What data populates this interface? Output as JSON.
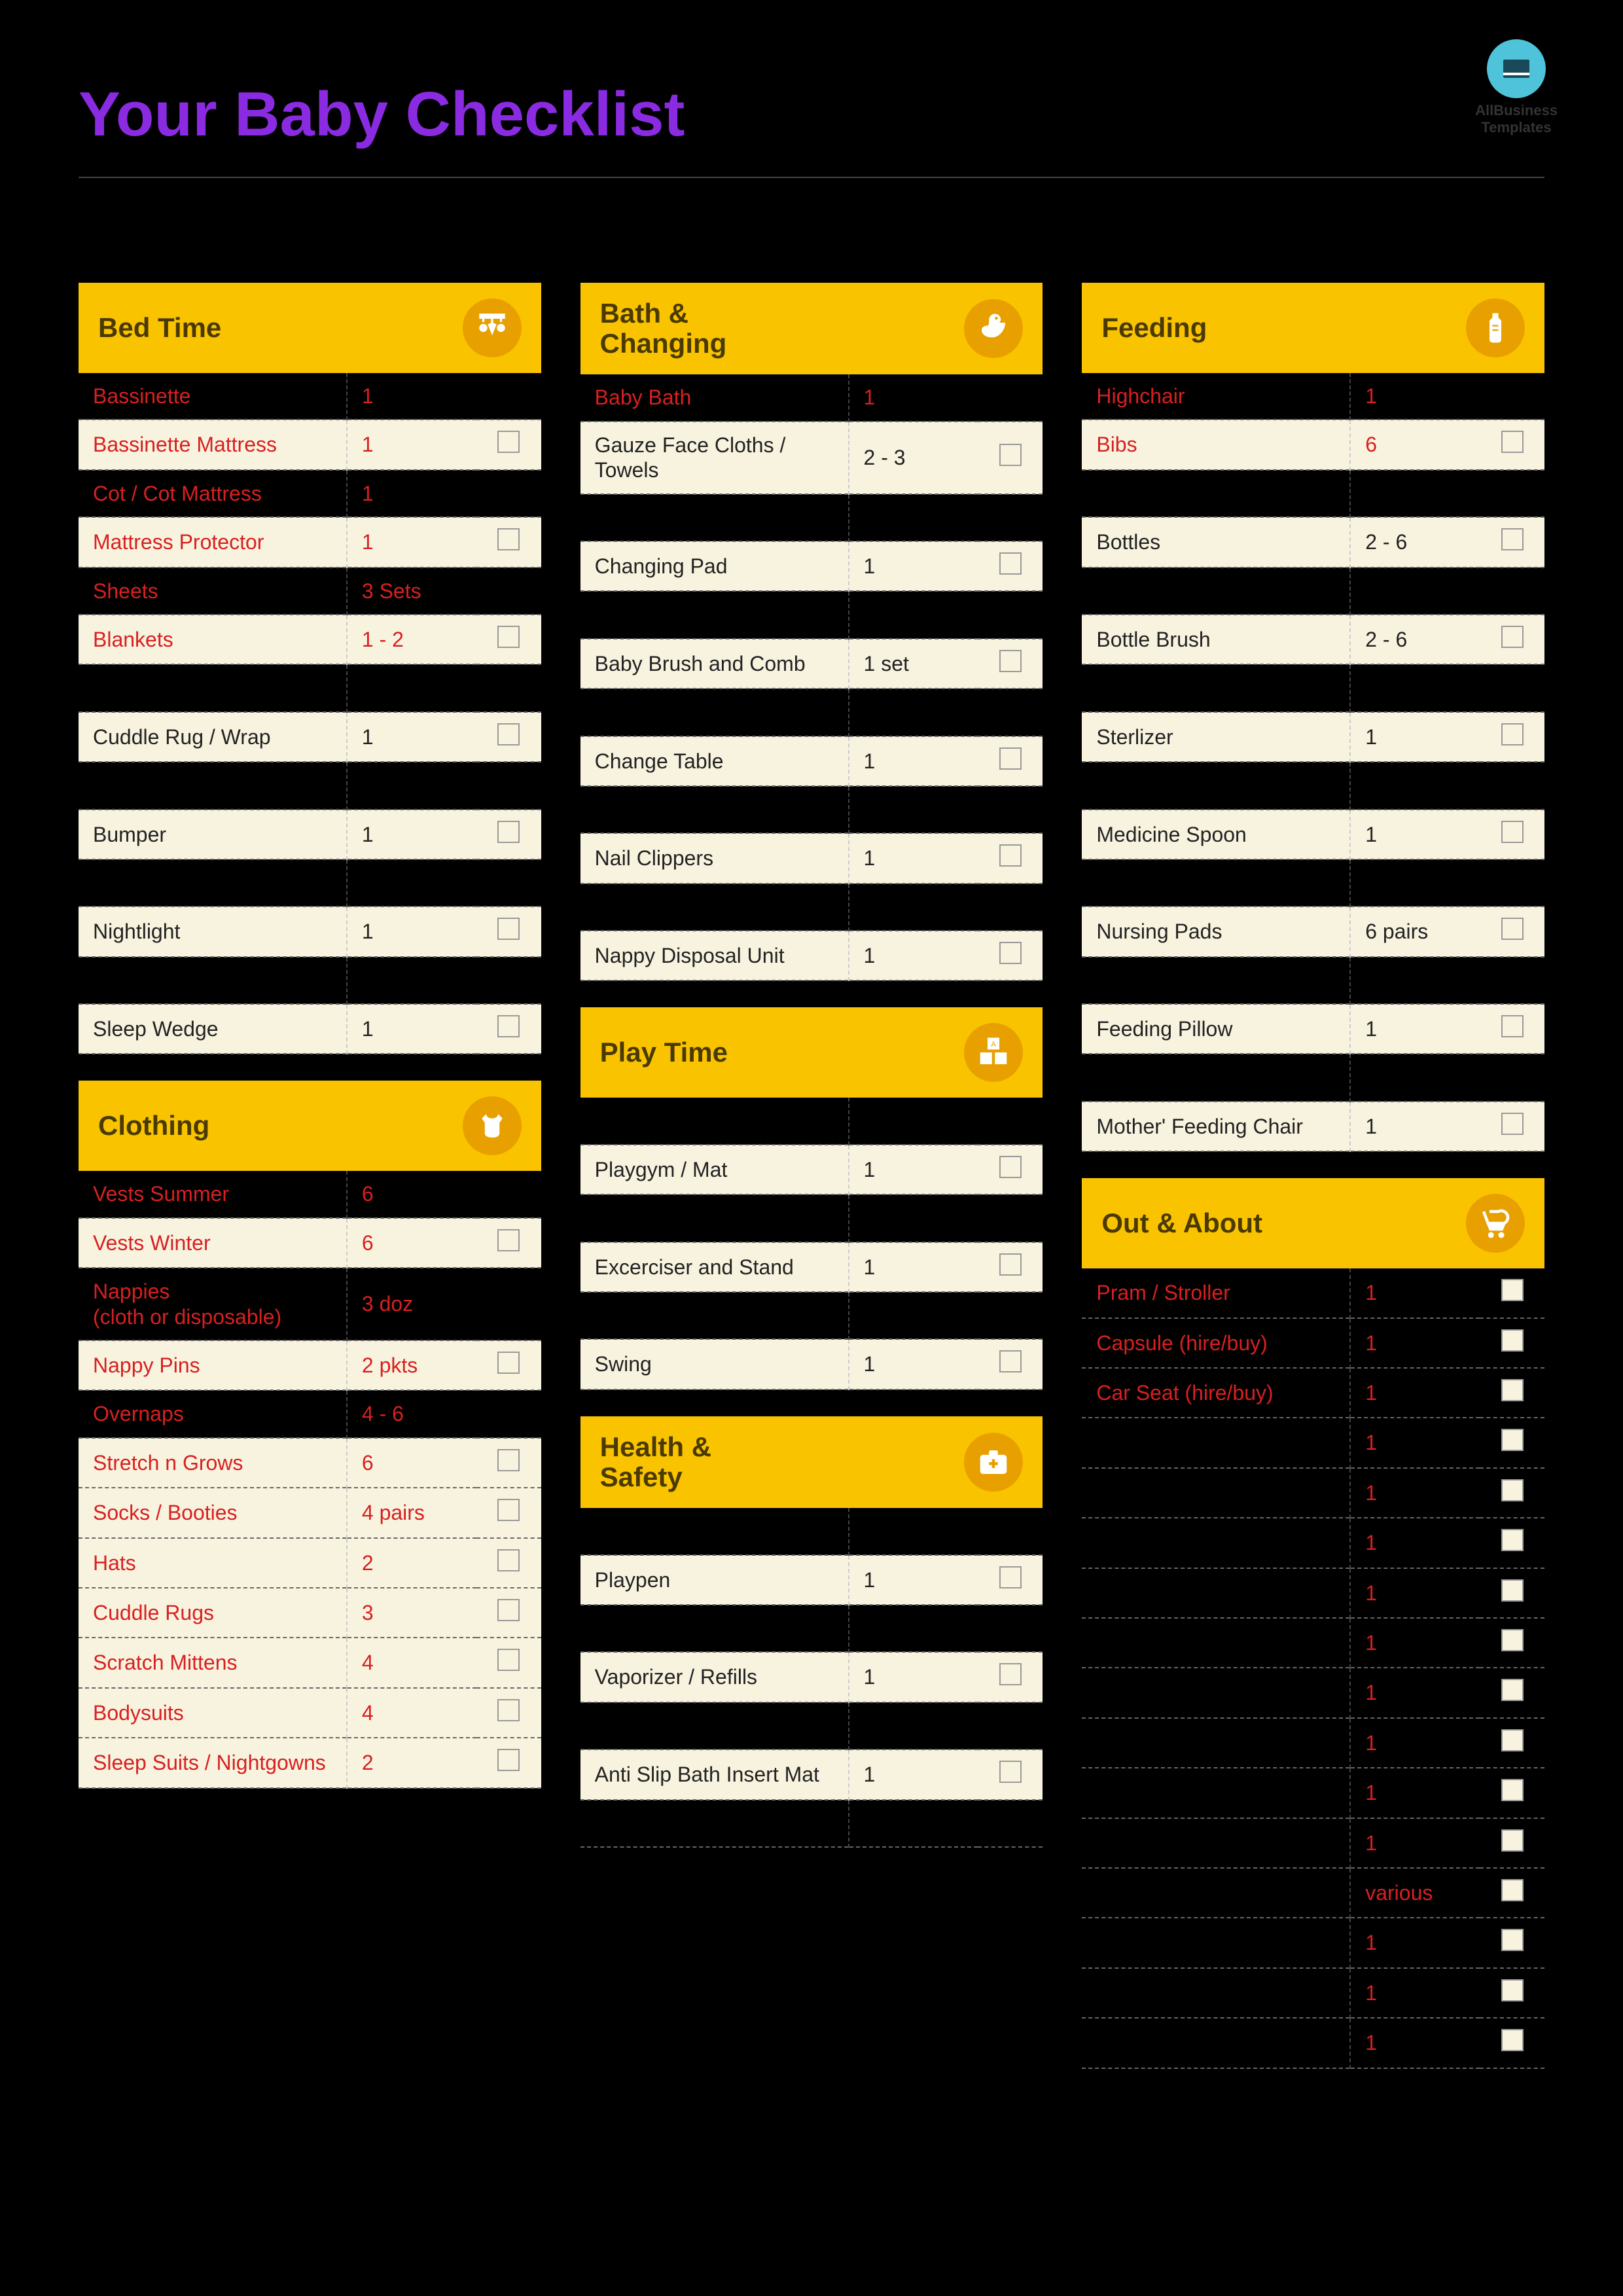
{
  "logo": {
    "line1": "AllBusiness",
    "line2": "Templates"
  },
  "title": "Your Baby Checklist",
  "sections": {
    "bedtime": {
      "title": "Bed Time",
      "items": [
        {
          "label": "Bassinette",
          "qty": "1",
          "dark": true,
          "nocheck": true
        },
        {
          "label": "Bassinette Mattress",
          "qty": "1",
          "red": true
        },
        {
          "label": "Cot / Cot Mattress",
          "qty": "1",
          "dark": true,
          "nocheck": true
        },
        {
          "label": "Mattress Protector",
          "qty": "1",
          "red": true
        },
        {
          "label": "Sheets",
          "qty": "3 Sets",
          "dark": true,
          "nocheck": true
        },
        {
          "label": "Blankets",
          "qty": "1 - 2",
          "red": true
        },
        {
          "label": "",
          "qty": "",
          "dark": true,
          "nocheck": true
        },
        {
          "label": "Cuddle Rug / Wrap",
          "qty": "1"
        },
        {
          "label": "",
          "qty": "",
          "dark": true,
          "nocheck": true
        },
        {
          "label": "Bumper",
          "qty": "1"
        },
        {
          "label": "",
          "qty": "",
          "dark": true,
          "nocheck": true
        },
        {
          "label": "Nightlight",
          "qty": "1"
        },
        {
          "label": "",
          "qty": "",
          "dark": true,
          "nocheck": true
        },
        {
          "label": "Sleep Wedge",
          "qty": "1"
        }
      ]
    },
    "clothing": {
      "title": "Clothing",
      "items": [
        {
          "label": "Vests Summer",
          "qty": "6",
          "dark": true,
          "nocheck": true
        },
        {
          "label": "Vests Winter",
          "qty": "6",
          "red": true
        },
        {
          "label": "Nappies\n(cloth or disposable)",
          "qty": "3 doz",
          "dark": true,
          "nocheck": true
        },
        {
          "label": "Nappy Pins",
          "qty": "2 pkts",
          "red": true
        },
        {
          "label": "Overnaps",
          "qty": "4 - 6",
          "dark": true,
          "nocheck": true
        },
        {
          "label": "Stretch n Grows",
          "qty": "6",
          "red": true
        },
        {
          "label": "Socks / Booties",
          "qty": "4 pairs",
          "red": true
        },
        {
          "label": "Hats",
          "qty": "2",
          "red": true
        },
        {
          "label": "Cuddle Rugs",
          "qty": "3",
          "red": true
        },
        {
          "label": "Scratch Mittens",
          "qty": "4",
          "red": true
        },
        {
          "label": "Bodysuits",
          "qty": "4",
          "red": true
        },
        {
          "label": "Sleep Suits / Nightgowns",
          "qty": "2",
          "red": true
        }
      ]
    },
    "bath": {
      "title": "Bath & Changing",
      "items": [
        {
          "label": "Baby Bath",
          "qty": "1",
          "dark": true,
          "nocheck": true
        },
        {
          "label": "Gauze Face Cloths / Towels",
          "qty": "2 - 3"
        },
        {
          "label": "",
          "qty": "",
          "dark": true,
          "nocheck": true
        },
        {
          "label": "Changing Pad",
          "qty": "1"
        },
        {
          "label": "",
          "qty": "",
          "dark": true,
          "nocheck": true
        },
        {
          "label": "Baby Brush and Comb",
          "qty": "1 set"
        },
        {
          "label": "",
          "qty": "",
          "dark": true,
          "nocheck": true
        },
        {
          "label": "Change Table",
          "qty": "1"
        },
        {
          "label": "",
          "qty": "",
          "dark": true,
          "nocheck": true
        },
        {
          "label": "Nail Clippers",
          "qty": "1"
        },
        {
          "label": "",
          "qty": "",
          "dark": true,
          "nocheck": true
        },
        {
          "label": "Nappy Disposal Unit",
          "qty": "1"
        }
      ]
    },
    "playtime": {
      "title": "Play Time",
      "items": [
        {
          "label": "",
          "qty": "",
          "dark": true,
          "nocheck": true
        },
        {
          "label": "Playgym / Mat",
          "qty": "1"
        },
        {
          "label": "",
          "qty": "",
          "dark": true,
          "nocheck": true
        },
        {
          "label": "Excerciser and Stand",
          "qty": "1"
        },
        {
          "label": "",
          "qty": "",
          "dark": true,
          "nocheck": true
        },
        {
          "label": "Swing",
          "qty": "1"
        }
      ]
    },
    "health": {
      "title": "Health & Safety",
      "items": [
        {
          "label": "",
          "qty": "",
          "dark": true,
          "nocheck": true
        },
        {
          "label": "Playpen",
          "qty": "1"
        },
        {
          "label": "",
          "qty": "",
          "dark": true,
          "nocheck": true
        },
        {
          "label": "Vaporizer / Refills",
          "qty": "1"
        },
        {
          "label": "",
          "qty": "",
          "dark": true,
          "nocheck": true
        },
        {
          "label": "Anti Slip Bath Insert Mat",
          "qty": "1"
        },
        {
          "label": "",
          "qty": "",
          "dark": true,
          "nocheck": true
        }
      ]
    },
    "feeding": {
      "title": "Feeding",
      "items": [
        {
          "label": "Highchair",
          "qty": "1",
          "dark": true,
          "nocheck": true
        },
        {
          "label": "Bibs",
          "qty": "6",
          "red": true
        },
        {
          "label": "",
          "qty": "",
          "dark": true,
          "nocheck": true
        },
        {
          "label": "Bottles",
          "qty": "2 - 6"
        },
        {
          "label": "",
          "qty": "",
          "dark": true,
          "nocheck": true
        },
        {
          "label": "Bottle Brush",
          "qty": "2 - 6"
        },
        {
          "label": "",
          "qty": "",
          "dark": true,
          "nocheck": true
        },
        {
          "label": "Sterlizer",
          "qty": "1"
        },
        {
          "label": "",
          "qty": "",
          "dark": true,
          "nocheck": true
        },
        {
          "label": "Medicine Spoon",
          "qty": "1"
        },
        {
          "label": "",
          "qty": "",
          "dark": true,
          "nocheck": true
        },
        {
          "label": "Nursing Pads",
          "qty": "6 pairs"
        },
        {
          "label": "",
          "qty": "",
          "dark": true,
          "nocheck": true
        },
        {
          "label": "Feeding Pillow",
          "qty": "1"
        },
        {
          "label": "",
          "qty": "",
          "dark": true,
          "nocheck": true
        },
        {
          "label": "Mother' Feeding Chair",
          "qty": "1"
        }
      ]
    },
    "out": {
      "title": "Out & About",
      "items": [
        {
          "label": "Pram / Stroller",
          "qty": "1",
          "dark": true
        },
        {
          "label": "Capsule (hire/buy)",
          "qty": "1",
          "dark": true
        },
        {
          "label": "Car Seat (hire/buy)",
          "qty": "1",
          "dark": true
        },
        {
          "label": "",
          "qty": "1",
          "dark": true,
          "emptylabel": true
        },
        {
          "label": "",
          "qty": "1",
          "dark": true,
          "emptylabel": true
        },
        {
          "label": "",
          "qty": "1",
          "dark": true,
          "emptylabel": true
        },
        {
          "label": "",
          "qty": "1",
          "dark": true,
          "emptylabel": true
        },
        {
          "label": "",
          "qty": "1",
          "dark": true,
          "emptylabel": true
        },
        {
          "label": "",
          "qty": "1",
          "dark": true,
          "emptylabel": true
        },
        {
          "label": "",
          "qty": "1",
          "dark": true,
          "emptylabel": true
        },
        {
          "label": "",
          "qty": "1",
          "dark": true,
          "emptylabel": true
        },
        {
          "label": "",
          "qty": "1",
          "dark": true,
          "emptylabel": true
        },
        {
          "label": "",
          "qty": "various",
          "dark": true,
          "emptylabel": true
        },
        {
          "label": "",
          "qty": "1",
          "dark": true,
          "emptylabel": true
        },
        {
          "label": "",
          "qty": "1",
          "dark": true,
          "emptylabel": true
        },
        {
          "label": "",
          "qty": "1",
          "dark": true,
          "emptylabel": true
        }
      ]
    }
  },
  "colors": {
    "background": "#000000",
    "title_color": "#8a2be2",
    "header_bg": "#f9c300",
    "header_text": "#4a3a00",
    "icon_bg": "#e8a000",
    "row_light": "#f8f3df",
    "red_text": "#d82020"
  }
}
